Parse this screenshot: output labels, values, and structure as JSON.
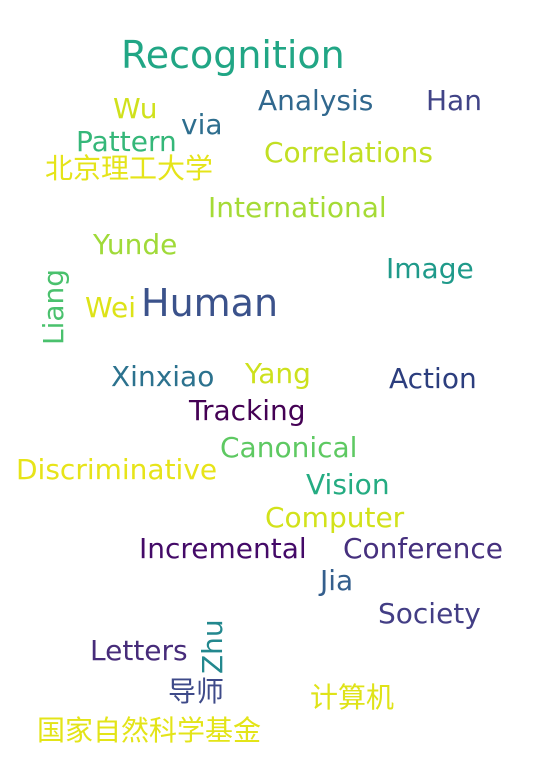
{
  "words": {
    "recognition": {
      "text": "Recognition",
      "color": "#21a685"
    },
    "wu": {
      "text": "Wu",
      "color": "#d0e11c"
    },
    "via": {
      "text": "via",
      "color": "#2e6e8e"
    },
    "analysis": {
      "text": "Analysis",
      "color": "#31688e"
    },
    "han": {
      "text": "Han",
      "color": "#414487"
    },
    "pattern": {
      "text": "Pattern",
      "color": "#35b779"
    },
    "beijing_inst": {
      "text": "北京理工大学",
      "color": "#e5e419"
    },
    "correlations": {
      "text": "Correlations",
      "color": "#c2df23"
    },
    "international": {
      "text": "International",
      "color": "#a5db36"
    },
    "yunde": {
      "text": "Yunde",
      "color": "#a0da39"
    },
    "image": {
      "text": "Image",
      "color": "#1f9a8a"
    },
    "liang": {
      "text": "Liang",
      "color": "#4ac16d"
    },
    "wei": {
      "text": "Wei",
      "color": "#dde318"
    },
    "human": {
      "text": "Human",
      "color": "#3b528b"
    },
    "xinxiao": {
      "text": "Xinxiao",
      "color": "#2c728e"
    },
    "yang": {
      "text": "Yang",
      "color": "#cde11d"
    },
    "action": {
      "text": "Action",
      "color": "#2c3e7e"
    },
    "tracking": {
      "text": "Tracking",
      "color": "#440154"
    },
    "canonical": {
      "text": "Canonical",
      "color": "#5ec962"
    },
    "discriminative": {
      "text": "Discriminative",
      "color": "#e7e419"
    },
    "vision": {
      "text": "Vision",
      "color": "#25ac82"
    },
    "computer": {
      "text": "Computer",
      "color": "#d2e21b"
    },
    "incremental": {
      "text": "Incremental",
      "color": "#440a68"
    },
    "conference": {
      "text": "Conference",
      "color": "#46307e"
    },
    "jia": {
      "text": "Jia",
      "color": "#355f8d"
    },
    "society": {
      "text": "Society",
      "color": "#433e85"
    },
    "zhu": {
      "text": "Zhu",
      "color": "#23888e"
    },
    "letters": {
      "text": "Letters",
      "color": "#472c7a"
    },
    "advisor": {
      "text": "导师",
      "color": "#3e4a89"
    },
    "computer_cn": {
      "text": "计算机",
      "color": "#dfe318"
    },
    "nsfc": {
      "text": "国家自然科学基金",
      "color": "#e3e418"
    }
  }
}
